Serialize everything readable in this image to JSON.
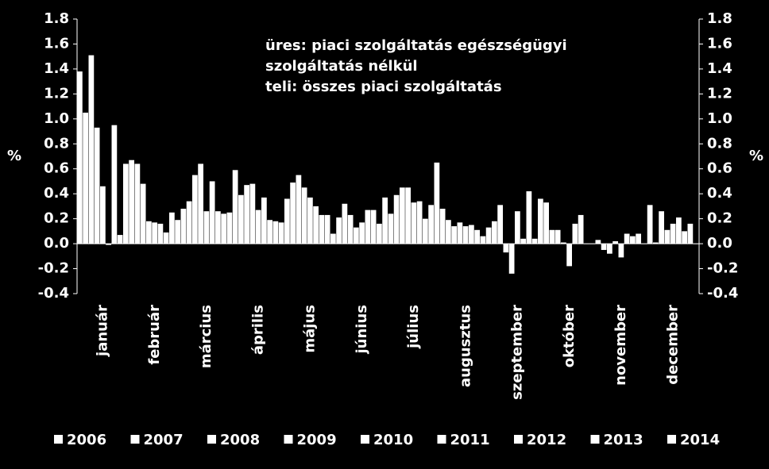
{
  "chart_data": {
    "type": "bar",
    "annotations": [
      "üres: piaci szolgáltatás egészségügyi",
      "szolgáltatás nélkül",
      "teli: összes piaci szolgáltatás"
    ],
    "ylabel": "%",
    "y2label": "%",
    "categories": [
      "január",
      "február",
      "március",
      "április",
      "május",
      "június",
      "július",
      "augusztus",
      "szeptember",
      "október",
      "november",
      "december"
    ],
    "series": [
      {
        "name": "2006",
        "color": "#ffffff",
        "values": [
          1.38,
          0.67,
          0.28,
          0.59,
          0.36,
          0.21,
          0.24,
          0.28,
          0.18,
          0.33,
          0.03,
          0.31
        ]
      },
      {
        "name": "2007",
        "color": "#ffffff",
        "values": [
          1.05,
          0.64,
          0.34,
          0.39,
          0.49,
          0.32,
          0.39,
          0.19,
          0.31,
          0.11,
          -0.05,
          0.01
        ]
      },
      {
        "name": "2008",
        "color": "#ffffff",
        "values": [
          1.51,
          0.48,
          0.55,
          0.47,
          0.55,
          0.23,
          0.45,
          0.14,
          -0.07,
          0.11,
          -0.08,
          0.26
        ]
      },
      {
        "name": "2009",
        "color": "#ffffff",
        "values": [
          0.93,
          0.18,
          0.64,
          0.48,
          0.45,
          0.13,
          0.45,
          0.17,
          -0.24,
          0.01,
          0.02,
          0.11
        ]
      },
      {
        "name": "2010",
        "color": "#ffffff",
        "values": [
          0.46,
          0.17,
          0.26,
          0.27,
          0.37,
          0.17,
          0.33,
          0.14,
          0.26,
          -0.18,
          -0.11,
          0.16
        ]
      },
      {
        "name": "2011",
        "color": "#ffffff",
        "values": [
          -0.01,
          0.16,
          0.5,
          0.37,
          0.3,
          0.27,
          0.34,
          0.15,
          0.04,
          0.16,
          0.08,
          0.21
        ]
      },
      {
        "name": "2012",
        "color": "#ffffff",
        "values": [
          0.95,
          0.09,
          0.26,
          0.19,
          0.23,
          0.27,
          0.2,
          0.11,
          0.42,
          0.23,
          0.06,
          0.1
        ]
      },
      {
        "name": "2013",
        "color": "#ffffff",
        "values": [
          0.07,
          0.25,
          0.24,
          0.18,
          0.23,
          0.16,
          0.31,
          0.06,
          0.04,
          0.0,
          0.08,
          0.16
        ]
      },
      {
        "name": "2014",
        "color": "#ffffff",
        "values": [
          0.64,
          0.19,
          0.25,
          0.17,
          0.08,
          0.37,
          0.65,
          0.13,
          0.36,
          0.0,
          0.0,
          0.0
        ]
      }
    ],
    "ylim": [
      -0.4,
      1.8
    ],
    "yticks": [
      1.8,
      1.6,
      1.4,
      1.2,
      {
        "value": 1.0,
        "label": "1.0"
      },
      0.8,
      0.6,
      0.4,
      0.2,
      {
        "value": 0,
        "label": "0.0"
      },
      -0.2,
      -0.4
    ],
    "y2lim": [
      -0.4,
      1.8
    ],
    "y2ticks": [
      1.8,
      1.6,
      1.4,
      1.2,
      {
        "value": 1.0,
        "label": "1.0"
      },
      0.8,
      0.6,
      0.4,
      0.2,
      {
        "value": 0,
        "label": "0.0"
      },
      -0.2,
      -0.4
    ],
    "legend": "bottom"
  }
}
